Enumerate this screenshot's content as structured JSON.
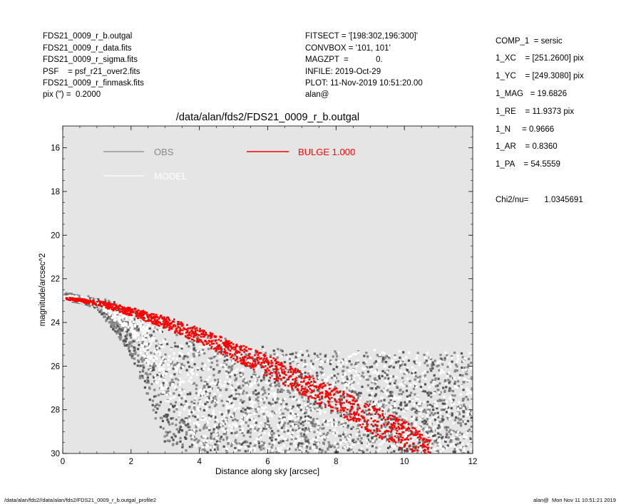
{
  "header_left": [
    "FDS21_0009_r_b.outgal",
    "FDS21_0009_r_data.fits",
    "FDS21_0009_r_sigma.fits",
    "PSF    = psf_r21_over2.fits",
    "FDS21_0009_r_finmask.fits",
    "pix (\") =  0.2000"
  ],
  "header_mid": [
    "FITSECT = '[198:302,196:300]'",
    "CONVBOX = '101, 101'",
    "MAGZPT  =            0.",
    "INFILE: 2019-Oct-29",
    "PLOT: 11-Nov-2019 10:51:20.00",
    "alan@"
  ],
  "params": [
    "COMP_1  = sersic",
    "1_XC    = [251.2600] pix",
    "1_YC    = [249.3080] pix",
    "1_MAG   = 19.6826",
    "1_RE    = 11.9373 pix",
    "1_N     = 0.9666",
    "1_AR    = 0.8360",
    "1_PA    = 54.5559"
  ],
  "chi2": {
    "label": "Chi2/nu=",
    "value": "1.0345691"
  },
  "footer": {
    "left": "/data/alan/fds2//data/alan/fds2/FDS21_0009_r_b.outgal_profile2",
    "right": "alan@  Mon Nov 11 10:51:21 2019"
  },
  "colors": {
    "plot_bg": "#e5e5e5",
    "obs": "#888888",
    "obs_dark": "#555555",
    "model": "#ffffff",
    "bulge": "#ff0000"
  },
  "chart_data": {
    "type": "scatter",
    "title": "/data/alan/fds2/FDS21_0009_r_b.outgal",
    "xlabel": "Distance along sky [arcsec]",
    "ylabel": "magnitude/arcsec^2",
    "xlim": [
      0,
      12
    ],
    "ylim": [
      30,
      15
    ],
    "y_inverted": true,
    "xticks": [
      "0",
      "2",
      "4",
      "6",
      "8",
      "10",
      "12"
    ],
    "yticks": [
      "16",
      "18",
      "20",
      "22",
      "24",
      "26",
      "28",
      "30"
    ],
    "legend": [
      {
        "name": "OBS",
        "color": "#888888"
      },
      {
        "name": "MODEL",
        "color": "#ffffff"
      },
      {
        "name": "BULGE  1.000",
        "color": "#ff0000"
      }
    ],
    "legend_position": "top-left",
    "series": [
      {
        "name": "BULGE  1.000",
        "kind": "band",
        "color": "#ff0000",
        "x": [
          0.1,
          1,
          2,
          3,
          4,
          5,
          6,
          7,
          8,
          9,
          10,
          10.8
        ],
        "y_center": [
          22.9,
          23.1,
          23.5,
          24.0,
          24.6,
          25.3,
          26.0,
          26.8,
          27.6,
          28.4,
          29.2,
          30.0
        ],
        "half_width": [
          0.05,
          0.12,
          0.2,
          0.28,
          0.35,
          0.42,
          0.5,
          0.55,
          0.6,
          0.65,
          0.68,
          0.7
        ]
      },
      {
        "name": "OBS",
        "kind": "scatter",
        "color": "#888888",
        "x": [
          0.1,
          1,
          2,
          3,
          4,
          5,
          6,
          7,
          8,
          9,
          10,
          11,
          12
        ],
        "y_upper": [
          22.7,
          22.9,
          23.3,
          23.8,
          24.3,
          24.8,
          25.1,
          25.3,
          25.3,
          25.3,
          25.3,
          25.3,
          25.3
        ],
        "y_lower": [
          22.9,
          23.3,
          25.5,
          29.5,
          30.0,
          30.0,
          30.0,
          30.0,
          30.0,
          30.0,
          30.0,
          30.0,
          30.0
        ]
      },
      {
        "name": "MODEL",
        "kind": "scatter",
        "color": "#ffffff",
        "x": [
          0.1,
          1,
          2,
          3,
          4,
          5,
          6,
          7,
          8,
          9,
          10,
          11,
          12
        ],
        "y_upper": [
          22.8,
          23.0,
          23.4,
          23.9,
          24.4,
          24.9,
          25.2,
          25.3,
          25.3,
          25.3,
          25.3,
          25.3,
          25.3
        ],
        "y_lower": [
          22.9,
          23.2,
          24.5,
          27.5,
          30.0,
          30.0,
          30.0,
          30.0,
          30.0,
          30.0,
          30.0,
          30.0,
          30.0
        ]
      }
    ]
  }
}
